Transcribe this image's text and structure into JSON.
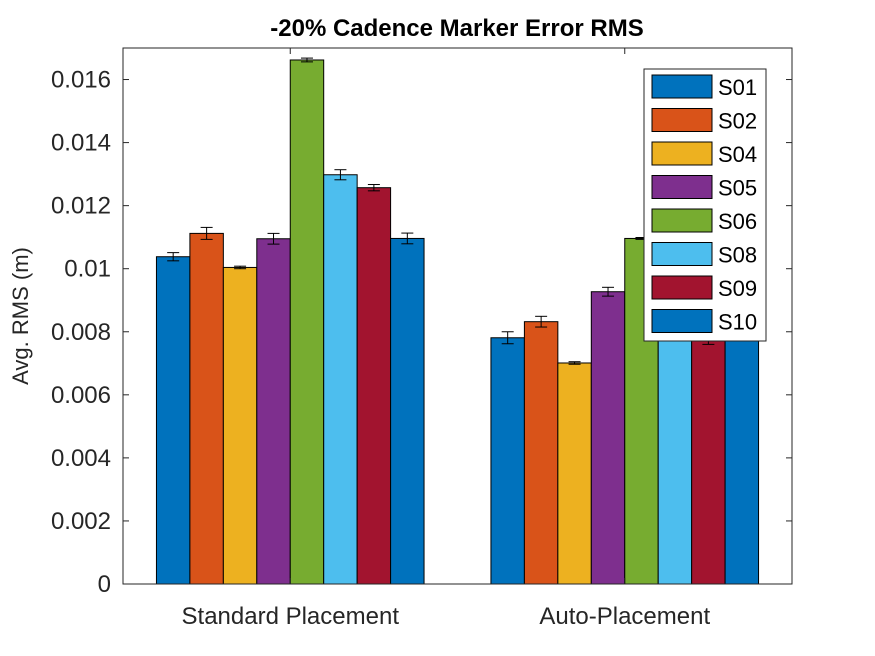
{
  "chart_data": {
    "type": "bar",
    "title": "-20% Cadence Marker Error RMS",
    "xlabel": "",
    "ylabel": "Avg. RMS (m)",
    "ylim": [
      0,
      0.017
    ],
    "yticks": [
      0,
      0.002,
      0.004,
      0.006,
      0.008,
      0.01,
      0.012,
      0.014,
      0.016
    ],
    "ytick_labels": [
      "0",
      "0.002",
      "0.004",
      "0.006",
      "0.008",
      "0.01",
      "0.012",
      "0.014",
      "0.016"
    ],
    "categories": [
      "Standard Placement",
      "Auto-Placement"
    ],
    "series": [
      {
        "name": "S01",
        "color": "#0072BD",
        "values": [
          0.01038,
          0.00781
        ],
        "errors": [
          0.00013,
          0.00019
        ]
      },
      {
        "name": "S02",
        "color": "#D95319",
        "values": [
          0.01112,
          0.00832
        ],
        "errors": [
          0.00019,
          0.00017
        ]
      },
      {
        "name": "S04",
        "color": "#EDB120",
        "values": [
          0.01004,
          0.00701
        ],
        "errors": [
          4e-05,
          4e-05
        ]
      },
      {
        "name": "S05",
        "color": "#7E2F8E",
        "values": [
          0.01095,
          0.00927
        ],
        "errors": [
          0.00017,
          0.00014
        ]
      },
      {
        "name": "S06",
        "color": "#77AC30",
        "values": [
          0.01662,
          0.01096
        ],
        "errors": [
          6e-05,
          3e-05
        ]
      },
      {
        "name": "S08",
        "color": "#4DBEEE",
        "values": [
          0.01298,
          0.009
        ],
        "errors": [
          0.00016,
          0.0001
        ]
      },
      {
        "name": "S09",
        "color": "#A2142F",
        "values": [
          0.01257,
          0.00775
        ],
        "errors": [
          0.0001,
          0.00015
        ]
      },
      {
        "name": "S10",
        "color": "#0072BD",
        "values": [
          0.01096,
          0.009
        ],
        "errors": [
          0.00017,
          0.0001
        ]
      }
    ],
    "legend_position": "top-right",
    "grid": false
  }
}
